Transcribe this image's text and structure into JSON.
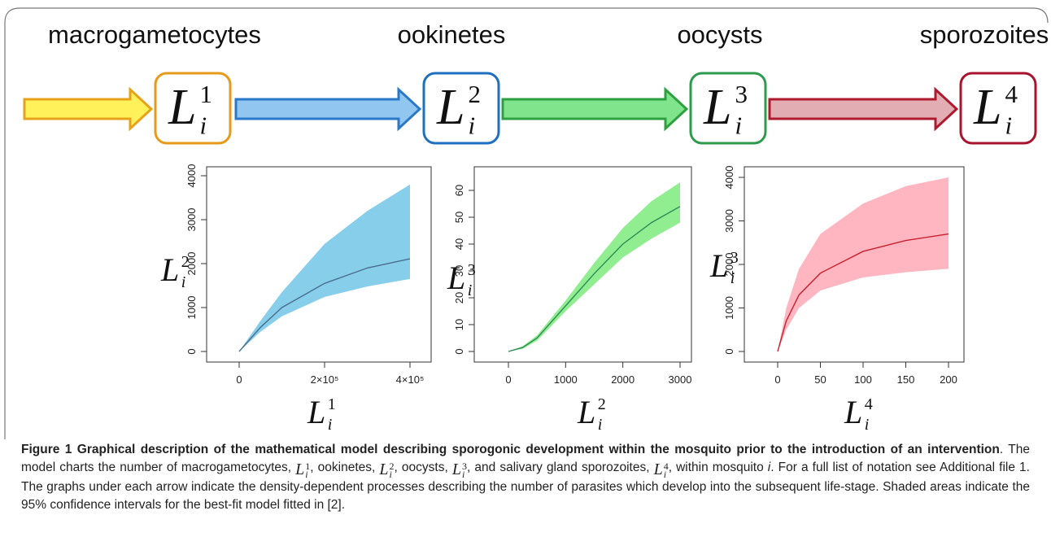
{
  "stages": [
    "macrogametocytes",
    "ookinetes",
    "oocysts",
    "sporozoites"
  ],
  "boxes": [
    {
      "base": "L",
      "sub": "i",
      "sup": "1"
    },
    {
      "base": "L",
      "sub": "i",
      "sup": "2"
    },
    {
      "base": "L",
      "sub": "i",
      "sup": "3"
    },
    {
      "base": "L",
      "sub": "i",
      "sup": "4"
    }
  ],
  "chart_data": [
    {
      "type": "line",
      "x_label": {
        "base": "L",
        "sub": "i",
        "sup": "1"
      },
      "y_label": {
        "base": "L",
        "sub": "i",
        "sup": "2"
      },
      "x": [
        0,
        50000,
        100000,
        200000,
        300000,
        400000
      ],
      "series": [
        {
          "values": [
            0,
            550,
            1000,
            1550,
            1900,
            2110
          ],
          "upper": [
            0,
            700,
            1350,
            2450,
            3200,
            3800
          ],
          "lower": [
            0,
            450,
            800,
            1240,
            1480,
            1650
          ],
          "color": "#4a6f8e",
          "band_color": "#87ceeb"
        }
      ],
      "xlim": [
        0,
        400000
      ],
      "ylim": [
        0,
        4000
      ],
      "xticks": [
        0,
        {
          "value": 200000,
          "label": "2×10⁵"
        },
        {
          "value": 400000,
          "label": "4×10⁵"
        }
      ],
      "yticks": [
        0,
        1000,
        2000,
        3000,
        4000
      ]
    },
    {
      "type": "line",
      "x_label": {
        "base": "L",
        "sub": "i",
        "sup": "2"
      },
      "y_label": {
        "base": "L",
        "sub": "i",
        "sup": "3"
      },
      "x": [
        0,
        250,
        500,
        1000,
        1500,
        2000,
        2500,
        3000
      ],
      "series": [
        {
          "values": [
            0,
            1.5,
            5,
            17,
            29,
            40,
            48,
            54
          ],
          "upper": [
            0,
            2,
            6,
            19,
            33,
            46,
            56,
            63
          ],
          "lower": [
            0,
            1,
            4,
            15,
            25,
            35,
            42,
            48
          ],
          "color": "#2e8b57",
          "band_color": "#90ee90"
        }
      ],
      "xlim": [
        0,
        3000
      ],
      "ylim": [
        0,
        60
      ],
      "xticks": [
        0,
        1000,
        2000,
        3000
      ],
      "yticks": [
        0,
        10,
        20,
        30,
        40,
        50,
        60
      ]
    },
    {
      "type": "line",
      "x_label": {
        "base": "L",
        "sub": "i",
        "sup": "4"
      },
      "y_label": {
        "base": "L",
        "sub": "i",
        "sup": "3"
      },
      "x": [
        0,
        10,
        25,
        50,
        100,
        150,
        200
      ],
      "series": [
        {
          "values": [
            0,
            700,
            1300,
            1800,
            2300,
            2550,
            2700
          ],
          "upper": [
            0,
            1000,
            1900,
            2700,
            3400,
            3800,
            4000
          ],
          "lower": [
            0,
            500,
            1000,
            1400,
            1700,
            1820,
            1900
          ],
          "color": "#c8202e",
          "band_color": "#ffb6c1"
        }
      ],
      "xlim": [
        0,
        200
      ],
      "ylim": [
        0,
        4000
      ],
      "xticks": [
        0,
        50,
        100,
        150,
        200
      ],
      "yticks": [
        0,
        1000,
        2000,
        3000,
        4000
      ]
    }
  ],
  "caption": [
    {
      "text": "Figure 1 Graphical description of the mathematical model describing sporogonic development within the mosquito prior to the introduction of an intervention",
      "style": "bold"
    },
    {
      "text": ". The model charts the number of macrogametocytes, "
    },
    {
      "math": {
        "base": "L",
        "sub": "i",
        "sup": "1"
      }
    },
    {
      "text": ", ookinetes, "
    },
    {
      "math": {
        "base": "L",
        "sub": "i",
        "sup": "2"
      }
    },
    {
      "text": ", oocysts, "
    },
    {
      "math": {
        "base": "L",
        "sub": "i",
        "sup": "3"
      }
    },
    {
      "text": ", and salivary gland sporozoites, "
    },
    {
      "math": {
        "base": "L",
        "sub": "i",
        "sup": "4"
      }
    },
    {
      "text": ", within mosquito "
    },
    {
      "text": "i",
      "style": "italic"
    },
    {
      "text": ". For a full list of notation see Additional file 1. The graphs under each arrow indicate the density-dependent processes describing the number of parasites which develop into the subsequent life-stage. Shaded areas indicate the 95% confidence intervals for the best-fit model fitted in [2]."
    }
  ]
}
